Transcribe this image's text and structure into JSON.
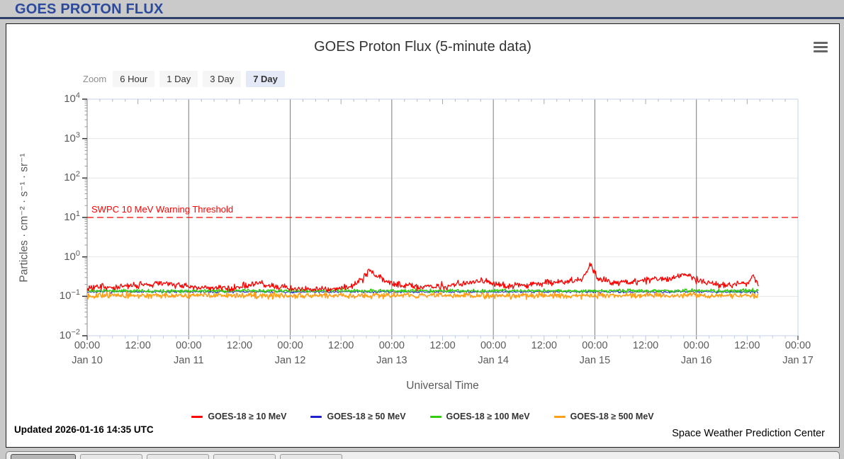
{
  "header": {
    "title": "GOES PROTON FLUX"
  },
  "chart": {
    "title": "GOES Proton Flux (5-minute data)",
    "zoom": {
      "label": "Zoom",
      "options": [
        {
          "label": "6 Hour",
          "selected": false
        },
        {
          "label": "1 Day",
          "selected": false
        },
        {
          "label": "3 Day",
          "selected": false
        },
        {
          "label": "7 Day",
          "selected": true
        }
      ]
    },
    "y_axis": {
      "title": "Particles · cm⁻² · s⁻¹ · sr⁻¹",
      "tick_exponents": [
        4,
        3,
        2,
        1,
        0,
        -1,
        -2
      ]
    },
    "x_axis": {
      "title": "Universal Time",
      "ticks": [
        {
          "time": "00:00",
          "date": "Jan 10"
        },
        {
          "time": "12:00"
        },
        {
          "time": "00:00",
          "date": "Jan 11"
        },
        {
          "time": "12:00"
        },
        {
          "time": "00:00",
          "date": "Jan 12"
        },
        {
          "time": "12:00"
        },
        {
          "time": "00:00",
          "date": "Jan 13"
        },
        {
          "time": "12:00"
        },
        {
          "time": "00:00",
          "date": "Jan 14"
        },
        {
          "time": "12:00"
        },
        {
          "time": "00:00",
          "date": "Jan 15"
        },
        {
          "time": "12:00"
        },
        {
          "time": "00:00",
          "date": "Jan 16"
        },
        {
          "time": "12:00"
        },
        {
          "time": "00:00",
          "date": "Jan 17"
        }
      ]
    }
  },
  "chart_data": {
    "type": "line",
    "title": "GOES Proton Flux (5-minute data)",
    "xlabel": "Universal Time",
    "ylabel": "Particles · cm⁻² · s⁻¹ · sr⁻¹",
    "y_scale": "log10",
    "ylim": [
      0.01,
      10000
    ],
    "x_range": [
      "Jan 10 00:00",
      "Jan 17 00:00"
    ],
    "x_gridlines_at_days": [
      "Jan 11",
      "Jan 12",
      "Jan 13",
      "Jan 14",
      "Jan 15",
      "Jan 16"
    ],
    "data_end_day": 6.61,
    "threshold": {
      "label": "SWPC 10 MeV Warning Threshold",
      "value": 10,
      "color": "#ff0000",
      "style": "dashed"
    },
    "legend_position": "bottom-center",
    "grid": true,
    "series": [
      {
        "name": "GOES-18 ≥ 10 MeV",
        "color": "#ff0000",
        "noise_log10_sigma": 0.06,
        "anchor_points_day_flux": [
          [
            0,
            0.16
          ],
          [
            0.2,
            0.17
          ],
          [
            0.45,
            0.18
          ],
          [
            0.6,
            0.21
          ],
          [
            0.75,
            0.22
          ],
          [
            0.9,
            0.19
          ],
          [
            1.05,
            0.17
          ],
          [
            1.3,
            0.16
          ],
          [
            1.55,
            0.18
          ],
          [
            1.7,
            0.21
          ],
          [
            1.85,
            0.18
          ],
          [
            2.1,
            0.15
          ],
          [
            2.4,
            0.15
          ],
          [
            2.6,
            0.18
          ],
          [
            2.72,
            0.28
          ],
          [
            2.78,
            0.5
          ],
          [
            2.84,
            0.32
          ],
          [
            2.95,
            0.24
          ],
          [
            3.1,
            0.19
          ],
          [
            3.3,
            0.17
          ],
          [
            3.55,
            0.18
          ],
          [
            3.75,
            0.22
          ],
          [
            3.9,
            0.26
          ],
          [
            4.0,
            0.21
          ],
          [
            4.15,
            0.18
          ],
          [
            4.35,
            0.2
          ],
          [
            4.55,
            0.22
          ],
          [
            4.75,
            0.24
          ],
          [
            4.88,
            0.28
          ],
          [
            4.96,
            0.65
          ],
          [
            5.02,
            0.3
          ],
          [
            5.2,
            0.22
          ],
          [
            5.4,
            0.24
          ],
          [
            5.6,
            0.3
          ],
          [
            5.75,
            0.26
          ],
          [
            5.88,
            0.38
          ],
          [
            6.0,
            0.26
          ],
          [
            6.15,
            0.21
          ],
          [
            6.35,
            0.19
          ],
          [
            6.5,
            0.22
          ],
          [
            6.56,
            0.32
          ],
          [
            6.61,
            0.2
          ]
        ]
      },
      {
        "name": "GOES-18 ≥ 50 MeV",
        "color": "#2020d0",
        "noise_log10_sigma": 0.022,
        "anchor_points_day_flux": [
          [
            0,
            0.13
          ],
          [
            6.61,
            0.13
          ]
        ]
      },
      {
        "name": "GOES-18 ≥ 100 MeV",
        "color": "#33cc11",
        "noise_log10_sigma": 0.03,
        "anchor_points_day_flux": [
          [
            0,
            0.138
          ],
          [
            6.61,
            0.138
          ]
        ]
      },
      {
        "name": "GOES-18 ≥ 500 MeV",
        "color": "#ffa017",
        "noise_log10_sigma": 0.05,
        "anchor_points_day_flux": [
          [
            0,
            0.105
          ],
          [
            6.61,
            0.105
          ]
        ]
      }
    ]
  },
  "footer": {
    "updated": "Updated 2026-01-16 14:35 UTC",
    "credit": "Space Weather Prediction Center"
  },
  "bottom_toolbar": {
    "visible_button_count": 5
  }
}
